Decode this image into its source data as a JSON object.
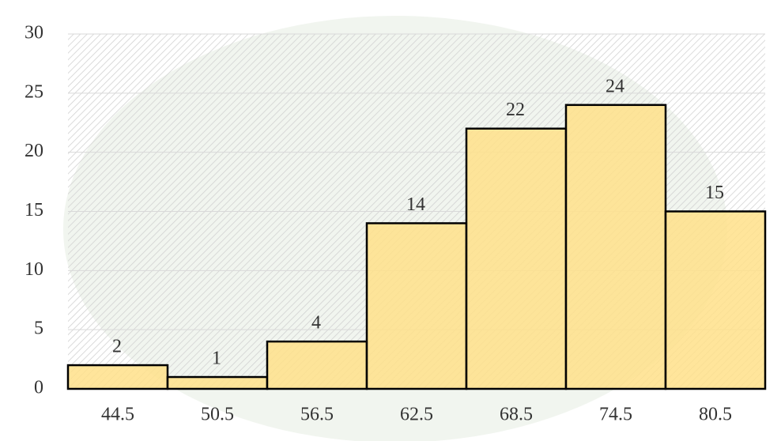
{
  "chart_data": {
    "type": "bar",
    "categories": [
      "44.5",
      "50.5",
      "56.5",
      "62.5",
      "68.5",
      "74.5",
      "80.5"
    ],
    "values": [
      2,
      1,
      4,
      14,
      22,
      24,
      15
    ],
    "color": "#ffe08a",
    "ylim": [
      0,
      30
    ],
    "yticks": [
      0,
      5,
      10,
      15,
      20,
      25,
      30
    ],
    "grid": true
  }
}
